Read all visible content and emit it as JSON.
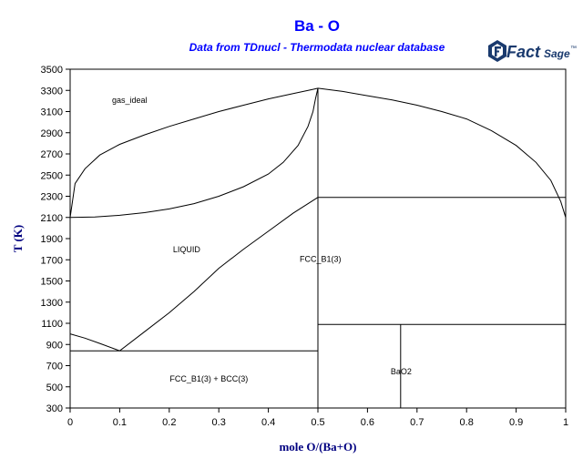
{
  "title": "Ba - O",
  "subtitle": "Data from TDnucl - Thermodata nuclear database",
  "logo": {
    "brand": "Fact",
    "suffix": "Sage",
    "mark": "™"
  },
  "colors": {
    "title": "#0000ff",
    "axis_label": "#000080",
    "logo": "#1a3a6e",
    "lines": "#000000"
  },
  "chart_data": {
    "type": "phase-diagram",
    "xlabel": "mole O/(Ba+O)",
    "ylabel": "T (K)",
    "xlim": [
      0,
      1
    ],
    "ylim": [
      300,
      3500
    ],
    "x_ticks": [
      "0",
      "0.1",
      "0.2",
      "0.3",
      "0.4",
      "0.5",
      "0.6",
      "0.7",
      "0.8",
      "0.9",
      "1"
    ],
    "x_tick_values": [
      0,
      0.1,
      0.2,
      0.3,
      0.4,
      0.5,
      0.6,
      0.7,
      0.8,
      0.9,
      1
    ],
    "y_ticks": [
      "3500",
      "3300",
      "3100",
      "2900",
      "2700",
      "2500",
      "2300",
      "2100",
      "1900",
      "1700",
      "1500",
      "1300",
      "1100",
      "900",
      "700",
      "500",
      "300"
    ],
    "y_tick_values": [
      3500,
      3300,
      3100,
      2900,
      2700,
      2500,
      2300,
      2100,
      1900,
      1700,
      1500,
      1300,
      1100,
      900,
      700,
      500,
      300
    ],
    "regions": [
      {
        "label": "gas_ideal",
        "x": 0.12,
        "T": 3180
      },
      {
        "label": "LIQUID",
        "x": 0.235,
        "T": 1770
      },
      {
        "label": "FCC_B1(3)",
        "x": 0.505,
        "T": 1680
      },
      {
        "label": "FCC_B1(3) + BCC(3)",
        "x": 0.28,
        "T": 550
      },
      {
        "label": "BaO2",
        "x": 0.668,
        "T": 620
      }
    ],
    "boundaries": [
      {
        "name": "gas-liquid-upper-left",
        "points": [
          [
            0,
            2100
          ],
          [
            0.01,
            2420
          ],
          [
            0.03,
            2560
          ],
          [
            0.06,
            2690
          ],
          [
            0.1,
            2790
          ],
          [
            0.15,
            2880
          ],
          [
            0.2,
            2960
          ],
          [
            0.25,
            3030
          ],
          [
            0.3,
            3100
          ],
          [
            0.35,
            3160
          ],
          [
            0.4,
            3220
          ],
          [
            0.45,
            3270
          ],
          [
            0.49,
            3310
          ],
          [
            0.5,
            3320
          ]
        ]
      },
      {
        "name": "gas-liquid-lower-left",
        "points": [
          [
            0,
            2100
          ],
          [
            0.05,
            2105
          ],
          [
            0.1,
            2120
          ],
          [
            0.15,
            2145
          ],
          [
            0.2,
            2180
          ],
          [
            0.25,
            2230
          ],
          [
            0.3,
            2300
          ],
          [
            0.35,
            2390
          ],
          [
            0.4,
            2510
          ],
          [
            0.43,
            2620
          ],
          [
            0.46,
            2780
          ],
          [
            0.48,
            2960
          ],
          [
            0.49,
            3100
          ],
          [
            0.495,
            3220
          ],
          [
            0.5,
            3320
          ]
        ]
      },
      {
        "name": "gas-liquid-right",
        "points": [
          [
            0.5,
            3320
          ],
          [
            0.55,
            3290
          ],
          [
            0.6,
            3250
          ],
          [
            0.65,
            3210
          ],
          [
            0.7,
            3160
          ],
          [
            0.75,
            3100
          ],
          [
            0.8,
            3030
          ],
          [
            0.85,
            2920
          ],
          [
            0.9,
            2780
          ],
          [
            0.94,
            2620
          ],
          [
            0.97,
            2450
          ],
          [
            0.99,
            2250
          ],
          [
            1,
            2100
          ]
        ]
      },
      {
        "name": "liquidus-fcc",
        "points": [
          [
            0.1,
            840
          ],
          [
            0.15,
            1020
          ],
          [
            0.2,
            1200
          ],
          [
            0.25,
            1400
          ],
          [
            0.3,
            1620
          ],
          [
            0.35,
            1800
          ],
          [
            0.4,
            1970
          ],
          [
            0.45,
            2140
          ],
          [
            0.5,
            2290
          ]
        ]
      },
      {
        "name": "liquidus-bcc",
        "points": [
          [
            0,
            1000
          ],
          [
            0.03,
            960
          ],
          [
            0.06,
            910
          ],
          [
            0.1,
            840
          ]
        ]
      },
      {
        "name": "eutectic-line",
        "points": [
          [
            0,
            840
          ],
          [
            0.5,
            840
          ]
        ]
      },
      {
        "name": "bao-composition-line",
        "points": [
          [
            0.5,
            300
          ],
          [
            0.5,
            3320
          ]
        ]
      },
      {
        "name": "fcc-upper-boundary",
        "points": [
          [
            0.5,
            2290
          ],
          [
            1,
            2290
          ]
        ]
      },
      {
        "name": "bao-bao2-boundary",
        "points": [
          [
            0.5,
            1090
          ],
          [
            1,
            1090
          ]
        ]
      },
      {
        "name": "bao2-composition-line",
        "points": [
          [
            0.667,
            300
          ],
          [
            0.667,
            1090
          ]
        ]
      }
    ]
  }
}
